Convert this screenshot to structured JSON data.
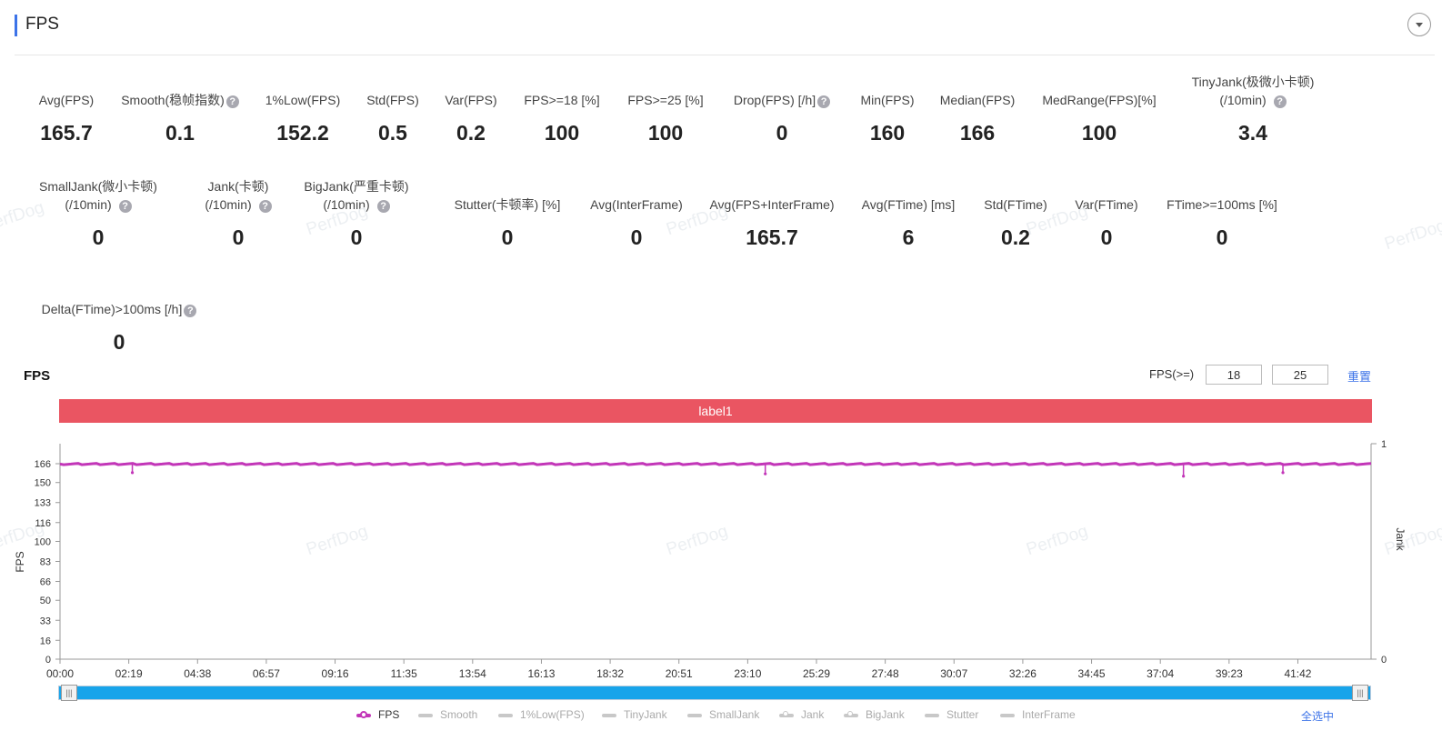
{
  "header": {
    "title": "FPS",
    "collapse_icon": "chevron-down-icon"
  },
  "metrics_row1": [
    {
      "label": "Avg(FPS)",
      "value": "165.7",
      "help": false
    },
    {
      "label": "Smooth(稳帧指数)",
      "value": "0.1",
      "help": true
    },
    {
      "label": "1%Low(FPS)",
      "value": "152.2",
      "help": false
    },
    {
      "label": "Std(FPS)",
      "value": "0.5",
      "help": false
    },
    {
      "label": "Var(FPS)",
      "value": "0.2",
      "help": false
    },
    {
      "label": "FPS>=18 [%]",
      "value": "100",
      "help": false
    },
    {
      "label": "FPS>=25 [%]",
      "value": "100",
      "help": false
    },
    {
      "label": "Drop(FPS) [/h]",
      "value": "0",
      "help": true
    },
    {
      "label": "Min(FPS)",
      "value": "160",
      "help": false
    },
    {
      "label": "Median(FPS)",
      "value": "166",
      "help": false
    },
    {
      "label": "MedRange(FPS)[%]",
      "value": "100",
      "help": false
    },
    {
      "label": "TinyJank(极微小卡顿)",
      "label2": "(/10min)",
      "value": "3.4",
      "help": true
    }
  ],
  "metrics_row2": [
    {
      "label": "SmallJank(微小卡顿)",
      "label2": "(/10min)",
      "value": "0",
      "help": true
    },
    {
      "label": "Jank(卡顿)",
      "label2": "(/10min)",
      "value": "0",
      "help": true
    },
    {
      "label": "BigJank(严重卡顿)",
      "label2": "(/10min)",
      "value": "0",
      "help": true
    },
    {
      "label": "Stutter(卡顿率) [%]",
      "value": "0",
      "help": false
    },
    {
      "label": "Avg(InterFrame)",
      "value": "0",
      "help": false
    },
    {
      "label": "Avg(FPS+InterFrame)",
      "value": "165.7",
      "help": false
    },
    {
      "label": "Avg(FTime) [ms]",
      "value": "6",
      "help": false
    },
    {
      "label": "Std(FTime)",
      "value": "0.2",
      "help": false
    },
    {
      "label": "Var(FTime)",
      "value": "0",
      "help": false
    },
    {
      "label": "FTime>=100ms [%]",
      "value": "0",
      "help": false
    }
  ],
  "metrics_row3": [
    {
      "label": "Delta(FTime)>100ms [/h]",
      "value": "0",
      "help": true
    }
  ],
  "watermark": "PerfDog",
  "chart_section": {
    "title": "FPS",
    "threshold_label": "FPS(>=)",
    "threshold_1": "18",
    "threshold_2": "25",
    "reset_label": "重置",
    "label_band": "label1",
    "select_all_label": "全选中"
  },
  "chart_data": {
    "type": "line",
    "title": "",
    "xlabel": "",
    "ylabel": "FPS",
    "y2label": "Jank",
    "ylim": [
      0,
      166
    ],
    "y2lim": [
      0,
      1
    ],
    "y_ticks": [
      "0",
      "16",
      "33",
      "50",
      "66",
      "83",
      "100",
      "116",
      "133",
      "150",
      "166"
    ],
    "y2_ticks": [
      "0",
      "1"
    ],
    "x_ticks": [
      "00:00",
      "02:19",
      "04:38",
      "06:57",
      "09:16",
      "11:35",
      "13:54",
      "16:13",
      "18:32",
      "20:51",
      "23:10",
      "25:29",
      "27:48",
      "30:07",
      "32:26",
      "34:45",
      "37:04",
      "39:23",
      "41:42"
    ],
    "x_range_seconds": [
      0,
      2650
    ],
    "grid": false,
    "legend_position": "bottom",
    "series": [
      {
        "name": "FPS",
        "color": "#c236b8",
        "active": true,
        "baseline": 165.7,
        "dips": [
          [
            160,
            163
          ],
          [
            1560,
            162
          ],
          [
            2485,
            160
          ],
          [
            2705,
            163
          ]
        ]
      },
      {
        "name": "Smooth",
        "active": false,
        "marker": false
      },
      {
        "name": "1%Low(FPS)",
        "active": false,
        "marker": false
      },
      {
        "name": "TinyJank",
        "active": false,
        "marker": false
      },
      {
        "name": "SmallJank",
        "active": false,
        "marker": false
      },
      {
        "name": "Jank",
        "active": false,
        "marker": true
      },
      {
        "name": "BigJank",
        "active": false,
        "marker": true
      },
      {
        "name": "Stutter",
        "active": false,
        "marker": false
      },
      {
        "name": "InterFrame",
        "active": false,
        "marker": false
      }
    ]
  },
  "colors": {
    "accent": "#3c73e8",
    "band": "#ea5562",
    "fps_line": "#c236b8",
    "slider": "#17a4ea"
  }
}
